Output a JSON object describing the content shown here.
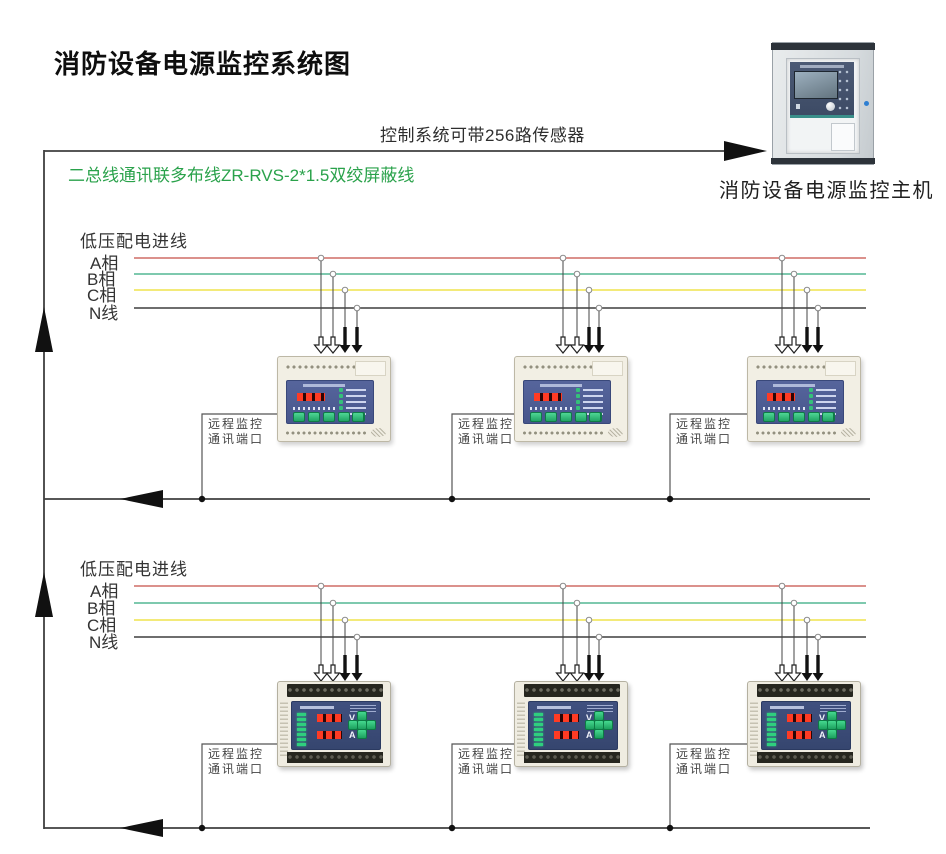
{
  "title": "消防设备电源监控系统图",
  "annotations": {
    "sensor_capacity": "控制系统可带256路传感器",
    "bus_wiring": "二总线通讯联多布线ZR-RVS-2*1.5双绞屏蔽线"
  },
  "master_unit": {
    "label": "消防设备电源监控主机"
  },
  "section": {
    "incoming_label": "低压配电进线",
    "phases": [
      {
        "label": "A相",
        "color": "#cf6d66"
      },
      {
        "label": "B相",
        "color": "#53b793"
      },
      {
        "label": "C相",
        "color": "#efe44d"
      },
      {
        "label": "N线",
        "color": "#3f3f3f"
      }
    ],
    "remote_port_line1": "远程监控",
    "remote_port_line2": "通讯端口",
    "device_labels": {
      "volt": "V",
      "amp": "A"
    }
  },
  "colors": {
    "annotation_green": "#2aa24b",
    "bus_line": "#3f3f3f"
  }
}
